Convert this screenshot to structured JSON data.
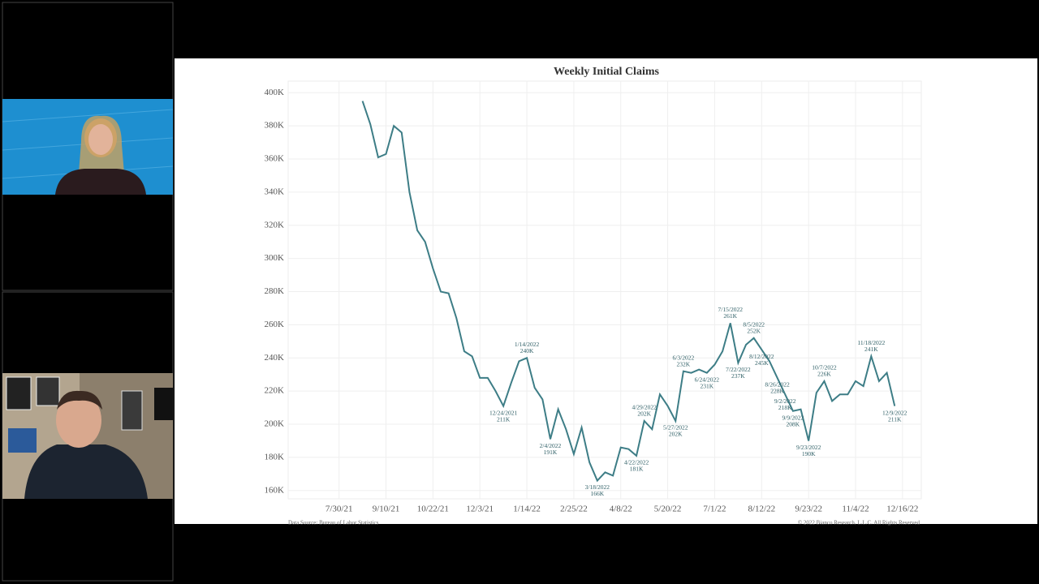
{
  "chart_data": {
    "type": "line",
    "title": "Weekly Initial Claims",
    "source": "Data Source: Bureau of Labor Statistics",
    "copyright": "© 2022 Bianco Research, L.L.C. All Rights Reserved",
    "color": "#3d7d86",
    "grid": true,
    "x": [
      3,
      4,
      5,
      6,
      7,
      8,
      9,
      10,
      11,
      12,
      13,
      14,
      15,
      16,
      17,
      18,
      19,
      20,
      21,
      22,
      23,
      24,
      25,
      26,
      27,
      28,
      29,
      30,
      31,
      32,
      33,
      34,
      35,
      36,
      37,
      38,
      39,
      40,
      41,
      42,
      43,
      44,
      45,
      46,
      47,
      48,
      49,
      50,
      51,
      52,
      53,
      54,
      55,
      56,
      57,
      58,
      59,
      60,
      61,
      62,
      63,
      64,
      65,
      66,
      67,
      68,
      69,
      70,
      71
    ],
    "values": [
      395,
      381,
      361,
      363,
      380,
      376,
      340,
      317,
      310,
      294,
      280,
      279,
      264,
      244,
      241,
      228,
      228,
      220,
      211,
      225,
      238,
      240,
      222,
      215,
      191,
      209,
      197,
      182,
      198,
      177,
      166,
      171,
      169,
      186,
      185,
      181,
      202,
      197,
      218,
      211,
      202,
      232,
      231,
      233,
      231,
      236,
      244,
      261,
      237,
      248,
      252,
      245,
      238,
      228,
      218,
      208,
      209,
      190,
      219,
      226,
      214,
      218,
      218,
      226,
      223,
      241,
      226,
      231,
      211
    ],
    "point_dates": [
      null,
      null,
      null,
      null,
      null,
      null,
      null,
      null,
      null,
      null,
      null,
      null,
      null,
      null,
      null,
      null,
      null,
      null,
      "12/24/2021",
      null,
      null,
      "1/14/2022",
      null,
      null,
      "2/4/2022",
      null,
      null,
      null,
      null,
      null,
      "3/18/2022",
      null,
      null,
      null,
      null,
      "4/22/2022",
      "4/29/2022",
      null,
      null,
      null,
      "5/27/2022",
      "6/3/2022",
      null,
      null,
      "6/24/2022",
      null,
      null,
      "7/15/2022",
      "7/22/2022",
      null,
      "8/5/2022",
      "8/12/2022",
      null,
      "8/26/2022",
      "9/2/2022",
      "9/9/2022",
      null,
      "9/23/2022",
      null,
      "10/7/2022",
      null,
      null,
      null,
      null,
      null,
      "11/18/2022",
      null,
      null,
      "12/9/2022"
    ],
    "value_labels": [
      null,
      null,
      null,
      null,
      null,
      null,
      null,
      null,
      null,
      null,
      null,
      null,
      null,
      null,
      null,
      null,
      null,
      null,
      "211K",
      null,
      null,
      "240K",
      null,
      null,
      "191K",
      null,
      null,
      null,
      null,
      null,
      "166K",
      null,
      null,
      null,
      null,
      "181K",
      "202K",
      null,
      null,
      null,
      "202K",
      "232K",
      null,
      null,
      "231K",
      null,
      null,
      "261K",
      "237K",
      null,
      "252K",
      "245K",
      null,
      "228K",
      "218K",
      "208K",
      null,
      "190K",
      null,
      "226K",
      null,
      null,
      null,
      null,
      null,
      "241K",
      null,
      null,
      "211K"
    ],
    "xlim": [
      -6.5,
      74.4
    ],
    "xticks": [
      {
        "value": 0,
        "label": "7/30/21"
      },
      {
        "value": 6,
        "label": "9/10/21"
      },
      {
        "value": 12,
        "label": "10/22/21"
      },
      {
        "value": 18,
        "label": "12/3/21"
      },
      {
        "value": 24,
        "label": "1/14/22"
      },
      {
        "value": 30,
        "label": "2/25/22"
      },
      {
        "value": 36,
        "label": "4/8/22"
      },
      {
        "value": 42,
        "label": "5/20/22"
      },
      {
        "value": 48,
        "label": "7/1/22"
      },
      {
        "value": 54,
        "label": "8/12/22"
      },
      {
        "value": 60,
        "label": "9/23/22"
      },
      {
        "value": 66,
        "label": "11/4/22"
      },
      {
        "value": 72,
        "label": "12/16/22"
      }
    ],
    "ylim": [
      155,
      407
    ],
    "yticks": [
      {
        "value": 160,
        "label": "160K"
      },
      {
        "value": 180,
        "label": "180K"
      },
      {
        "value": 200,
        "label": "200K"
      },
      {
        "value": 220,
        "label": "220K"
      },
      {
        "value": 240,
        "label": "240K"
      },
      {
        "value": 260,
        "label": "260K"
      },
      {
        "value": 280,
        "label": "280K"
      },
      {
        "value": 300,
        "label": "300K"
      },
      {
        "value": 320,
        "label": "320K"
      },
      {
        "value": 340,
        "label": "340K"
      },
      {
        "value": 360,
        "label": "360K"
      },
      {
        "value": 380,
        "label": "380K"
      },
      {
        "value": 400,
        "label": "400K"
      }
    ]
  }
}
